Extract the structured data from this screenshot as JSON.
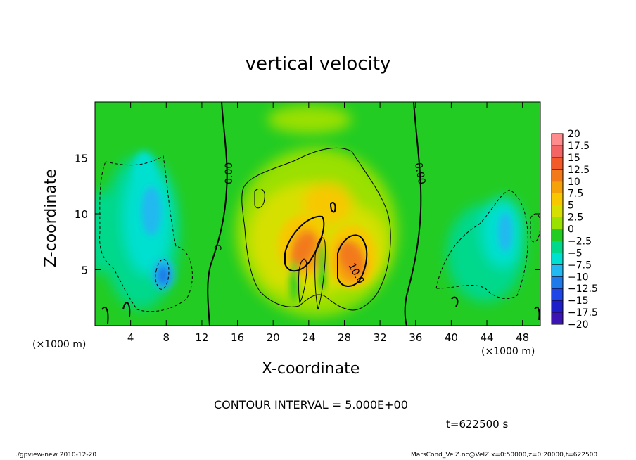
{
  "chart_data": {
    "type": "heatmap",
    "title": "vertical velocity",
    "xlabel": "X-coordinate",
    "ylabel": "Z-coordinate",
    "x_unit": "(×1000 m)",
    "y_unit": "(×1000 m)",
    "xlim": [
      0,
      50
    ],
    "ylim": [
      0,
      20
    ],
    "x_ticks": [
      4,
      8,
      12,
      16,
      20,
      24,
      28,
      32,
      36,
      40,
      44,
      48
    ],
    "y_ticks": [
      5,
      10,
      15
    ],
    "colorbar": {
      "levels": [
        "20",
        "17.5",
        "15",
        "12.5",
        "10",
        "7.5",
        "5",
        "2.5",
        "0",
        "−2.5",
        "−5",
        "−7.5",
        "−10",
        "−12.5",
        "−15",
        "−17.5",
        "−20"
      ],
      "colors": [
        "#ff8c8c",
        "#f46464",
        "#f25a2a",
        "#f27a1a",
        "#f5a10a",
        "#f7c800",
        "#d6e000",
        "#9ae000",
        "#22cc22",
        "#00d88c",
        "#00e0d0",
        "#22b8f0",
        "#1e7ae8",
        "#1e46e6",
        "#1e1ec8",
        "#3c14b4"
      ]
    },
    "contour_labels": [
      "0.00",
      "0.00",
      "10.0"
    ],
    "contour_interval": "CONTOUR INTERVAL = 5.000E+00",
    "time": "t=622500 s",
    "features": [
      {
        "x": 23.0,
        "z": 7.2,
        "value": 12.5
      },
      {
        "x": 29.5,
        "z": 5.8,
        "value": 12.5
      },
      {
        "x": 26.0,
        "z": 9.0,
        "value": 5.0
      },
      {
        "x": 8.0,
        "z": 4.5,
        "value": -12.5
      },
      {
        "x": 6.5,
        "z": 9.0,
        "value": -6.0
      },
      {
        "x": 46.0,
        "z": 7.5,
        "value": -7.5
      },
      {
        "x": 47.0,
        "z": 9.5,
        "value": -6.0
      }
    ]
  },
  "footer": {
    "left": "./gpview-new   2010-12-20",
    "right": "MarsCond_VelZ.nc@VelZ,x=0:50000,z=0:20000,t=622500"
  }
}
